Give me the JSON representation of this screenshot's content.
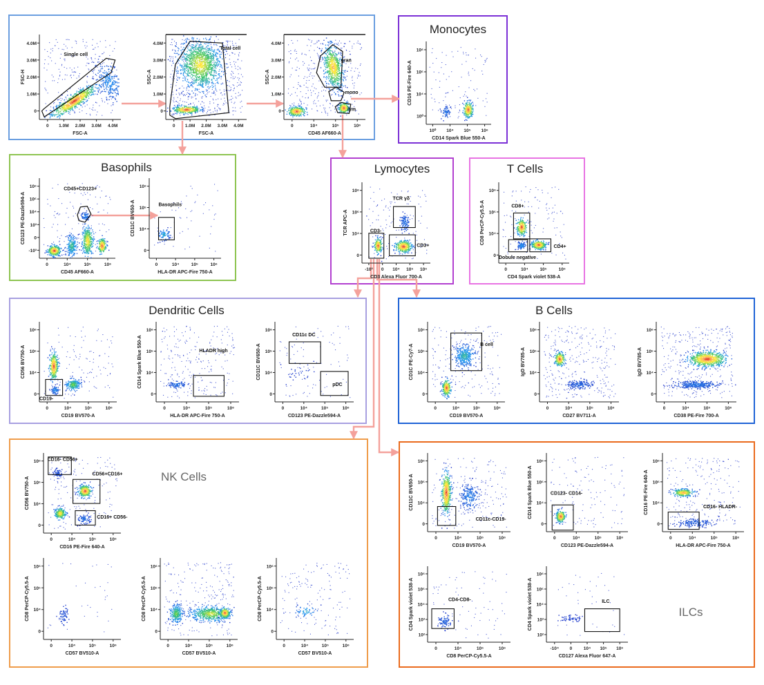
{
  "colors": {
    "arrow": "#f4a19b",
    "frame_gating": "#6a9ee0",
    "frame_monocytes": "#7b2fd6",
    "frame_basophils": "#8dc450",
    "frame_lymocytes": "#b23fd0",
    "frame_tcells": "#e873e3",
    "frame_dendritic": "#a79fe0",
    "frame_bcells": "#1e62d6",
    "frame_nk": "#ef9c4a",
    "frame_ilc": "#ea6a1c",
    "axis": "#222222",
    "gate": "#111111",
    "dot": "#1d33c9"
  },
  "panels": {
    "gating": {
      "title": ""
    },
    "monocytes": {
      "title": "Monocytes"
    },
    "basophils": {
      "title": "Basophils"
    },
    "lymocytes": {
      "title": "Lymocytes"
    },
    "tcells": {
      "title": "T Cells"
    },
    "dendritic": {
      "title": "Dendritic Cells"
    },
    "bcells": {
      "title": "B Cells"
    },
    "nk": {
      "title": "NK Cells"
    },
    "ilc": {
      "title": "ILCs"
    }
  },
  "plots": [
    {
      "id": "single-cell",
      "xlabel": "FSC-A",
      "ylabel": "FSC-H",
      "xticks": [
        "0",
        "1.0M",
        "2.0M",
        "3.0M",
        "4.0M"
      ],
      "yticks": [
        "0",
        "1.0M",
        "2.0M",
        "3.0M",
        "4.0M"
      ],
      "gates": [
        {
          "label": "Single cell"
        }
      ]
    },
    {
      "id": "total-cell",
      "xlabel": "FSC-A",
      "ylabel": "SSC-A",
      "xticks": [
        "0",
        "1.0M",
        "2.0M",
        "3.0M",
        "4.0M"
      ],
      "yticks": [
        "0",
        "1.0M",
        "2.0M",
        "3.0M",
        "4.0M"
      ],
      "gates": [
        {
          "label": "Total cell"
        }
      ]
    },
    {
      "id": "cd45-ssc",
      "xlabel": "CD45 AF660-A",
      "ylabel": "SSC-A",
      "xticks": [
        "0",
        "10⁴",
        "10⁵",
        "10⁶"
      ],
      "yticks": [
        "0",
        "1.0M",
        "2.0M",
        "3.0M",
        "4.0M"
      ],
      "gates": [
        {
          "label": "gran"
        },
        {
          "label": "mono"
        },
        {
          "label": "lym"
        }
      ]
    },
    {
      "id": "monocytes",
      "xlabel": "CD14 Spark Blue 550-A",
      "ylabel": "CD16 PE-Fire 640-A",
      "xticks": [
        "10⁰",
        "10⁴",
        "10⁵",
        "10⁶"
      ],
      "yticks": [
        "10⁰",
        "10⁴",
        "10⁵",
        "10⁶"
      ],
      "gates": []
    },
    {
      "id": "basophils-1",
      "xlabel": "CD45 AF660-A",
      "ylabel": "CD123 PE-Dazzle594-A",
      "xticks": [
        "0",
        "10⁴",
        "10⁵",
        "10⁶"
      ],
      "yticks": [
        "-10³",
        "0",
        "10³",
        "10⁴",
        "10⁵",
        "10⁶"
      ],
      "gates": [
        {
          "label": "CD45+CD123+"
        }
      ]
    },
    {
      "id": "basophils-2",
      "xlabel": "HLA-DR APC-Fire 750-A",
      "ylabel": "CD11C BV650-A",
      "xticks": [
        "0",
        "10⁴",
        "10⁵",
        "10⁶"
      ],
      "yticks": [
        "0",
        "10⁴",
        "10⁵",
        "10⁶"
      ],
      "gates": [
        {
          "label": "Basophils"
        }
      ]
    },
    {
      "id": "lymocytes",
      "xlabel": "CD3 Alexa Fluor 700-A",
      "ylabel": "TCR APC-A",
      "xticks": [
        "-10³",
        "0",
        "10⁴",
        "10⁵",
        "10⁶"
      ],
      "yticks": [
        "0",
        "10⁴",
        "10⁵",
        "10⁶"
      ],
      "gates": [
        {
          "label": "TCR γδ"
        },
        {
          "label": "CD3-"
        },
        {
          "label": "CD3+"
        }
      ]
    },
    {
      "id": "tcells",
      "xlabel": "CD4 Spark violet 538-A",
      "ylabel": "CD8 PerCP-Cy5.5-A",
      "xticks": [
        "0",
        "10⁴",
        "10⁵",
        "10⁶"
      ],
      "yticks": [
        "0",
        "10⁴",
        "10⁵",
        "10⁶"
      ],
      "gates": [
        {
          "label": "CD8+"
        },
        {
          "label": "CD4+"
        },
        {
          "label": "Dobule negative"
        }
      ]
    },
    {
      "id": "dc-1",
      "xlabel": "CD19 BV570-A",
      "ylabel": "CD56 BV750-A",
      "xticks": [
        "0",
        "10⁴",
        "10⁵",
        "10⁶"
      ],
      "yticks": [
        "0",
        "10⁴",
        "10⁵",
        "10⁶"
      ],
      "gates": [
        {
          "label": "CD19-"
        }
      ]
    },
    {
      "id": "dc-2",
      "xlabel": "HLA-DR APC-Fire 750-A",
      "ylabel": "CD14 Spark Blue 550-A",
      "xticks": [
        "0",
        "10⁴",
        "10⁵",
        "10⁶"
      ],
      "yticks": [
        "0",
        "10⁴",
        "10⁵",
        "10⁶"
      ],
      "gates": [
        {
          "label": "HLADR high"
        }
      ]
    },
    {
      "id": "dc-3",
      "xlabel": "CD123 PE-Dazzle594-A",
      "ylabel": "CD11C BV650-A",
      "xticks": [
        "0",
        "10⁴",
        "10⁵",
        "10⁶"
      ],
      "yticks": [
        "0",
        "10⁴",
        "10⁵",
        "10⁶"
      ],
      "gates": [
        {
          "label": "CD11c DC"
        },
        {
          "label": "pDC"
        }
      ]
    },
    {
      "id": "bcells-1",
      "xlabel": "CD19 BV570-A",
      "ylabel": "CD1C PE-Cy7-A",
      "xticks": [
        "0",
        "10⁴",
        "10⁵",
        "10⁶"
      ],
      "yticks": [
        "0",
        "10⁴",
        "10⁵",
        "10⁶"
      ],
      "gates": [
        {
          "label": "B cell"
        }
      ]
    },
    {
      "id": "bcells-2",
      "xlabel": "CD27 BV711-A",
      "ylabel": "IgD BV785-A",
      "xticks": [
        "0",
        "10⁴",
        "10⁵",
        "10⁶"
      ],
      "yticks": [
        "0",
        "10⁴",
        "10⁵",
        "10⁶"
      ],
      "gates": []
    },
    {
      "id": "bcells-3",
      "xlabel": "CD38 PE-Fire 700-A",
      "ylabel": "IgD BV785-A",
      "xticks": [
        "0",
        "10⁴",
        "10⁵",
        "10⁶"
      ],
      "yticks": [
        "0",
        "10⁴",
        "10⁵",
        "10⁶"
      ],
      "gates": []
    },
    {
      "id": "nk-1",
      "xlabel": "CD16 PE-Fire 640-A",
      "ylabel": "CD56 BV750-A",
      "xticks": [
        "0",
        "10⁴",
        "10⁵",
        "10⁶"
      ],
      "yticks": [
        "0",
        "10⁴",
        "10⁵",
        "10⁶"
      ],
      "gates": [
        {
          "label": "CD16- CD56+"
        },
        {
          "label": "CD56+CD16+"
        },
        {
          "label": "CD16+ CD56-"
        }
      ]
    },
    {
      "id": "nk-2",
      "xlabel": "CD57 BV510-A",
      "ylabel": "CD8 PerCP-Cy5.5-A",
      "xticks": [
        "0",
        "10⁴",
        "10⁵",
        "10⁶"
      ],
      "yticks": [
        "0",
        "10⁴",
        "10⁵",
        "10⁶"
      ],
      "gates": []
    },
    {
      "id": "nk-3",
      "xlabel": "CD57 BV510-A",
      "ylabel": "CD8 PerCP-Cy5.5-A",
      "xticks": [
        "0",
        "10⁴",
        "10⁵",
        "10⁶"
      ],
      "yticks": [
        "0",
        "10⁴",
        "10⁵",
        "10⁶"
      ],
      "gates": []
    },
    {
      "id": "nk-4",
      "xlabel": "CD57 BV510-A",
      "ylabel": "CD8 PerCP-Cy5.5-A",
      "xticks": [
        "0",
        "10⁴",
        "10⁵",
        "10⁶"
      ],
      "yticks": [
        "0",
        "10⁴",
        "10⁵",
        "10⁶"
      ],
      "gates": []
    },
    {
      "id": "ilc-1",
      "xlabel": "CD19 BV570-A",
      "ylabel": "CD11C BV650-A",
      "xticks": [
        "0",
        "10⁴",
        "10⁵",
        "10⁶"
      ],
      "yticks": [
        "0",
        "10⁴",
        "10⁵",
        "10⁶"
      ],
      "gates": [
        {
          "label": "CD11c-CD19-"
        }
      ]
    },
    {
      "id": "ilc-2",
      "xlabel": "CD123 PE-Dazzle594-A",
      "ylabel": "CD14 Spark Blue 550-A",
      "xticks": [
        "0",
        "10⁴",
        "10⁵",
        "10⁶"
      ],
      "yticks": [
        "0",
        "10⁴",
        "10⁵",
        "10⁶"
      ],
      "gates": [
        {
          "label": "CD123- CD14-"
        }
      ]
    },
    {
      "id": "ilc-3",
      "xlabel": "HLA-DR APC-Fire 750-A",
      "ylabel": "CD16 PE-Fire 640-A",
      "xticks": [
        "0",
        "10⁴",
        "10⁵",
        "10⁶"
      ],
      "yticks": [
        "0",
        "10⁴",
        "10⁵",
        "10⁶"
      ],
      "gates": [
        {
          "label": "CD16- HLADR-"
        }
      ]
    },
    {
      "id": "ilc-4",
      "xlabel": "CD8 PerCP-Cy5.5-A",
      "ylabel": "CD4 Spark violet 538-A",
      "xticks": [
        "0",
        "10⁴",
        "10⁵",
        "10⁶"
      ],
      "yticks": [
        "10²",
        "10³",
        "10⁴",
        "10⁵",
        "10⁶"
      ],
      "gates": [
        {
          "label": "CD4-CD8-"
        }
      ]
    },
    {
      "id": "ilc-5",
      "xlabel": "CD127 Alexa Fluor 647-A",
      "ylabel": "CD4 Spark violet 538-A",
      "xticks": [
        "-10⁴",
        "0",
        "10⁴",
        "10⁵",
        "10⁶"
      ],
      "yticks": [
        "10²",
        "10³",
        "10⁴",
        "10⁵",
        "10⁶"
      ],
      "gates": [
        {
          "label": "ILC"
        }
      ]
    }
  ]
}
